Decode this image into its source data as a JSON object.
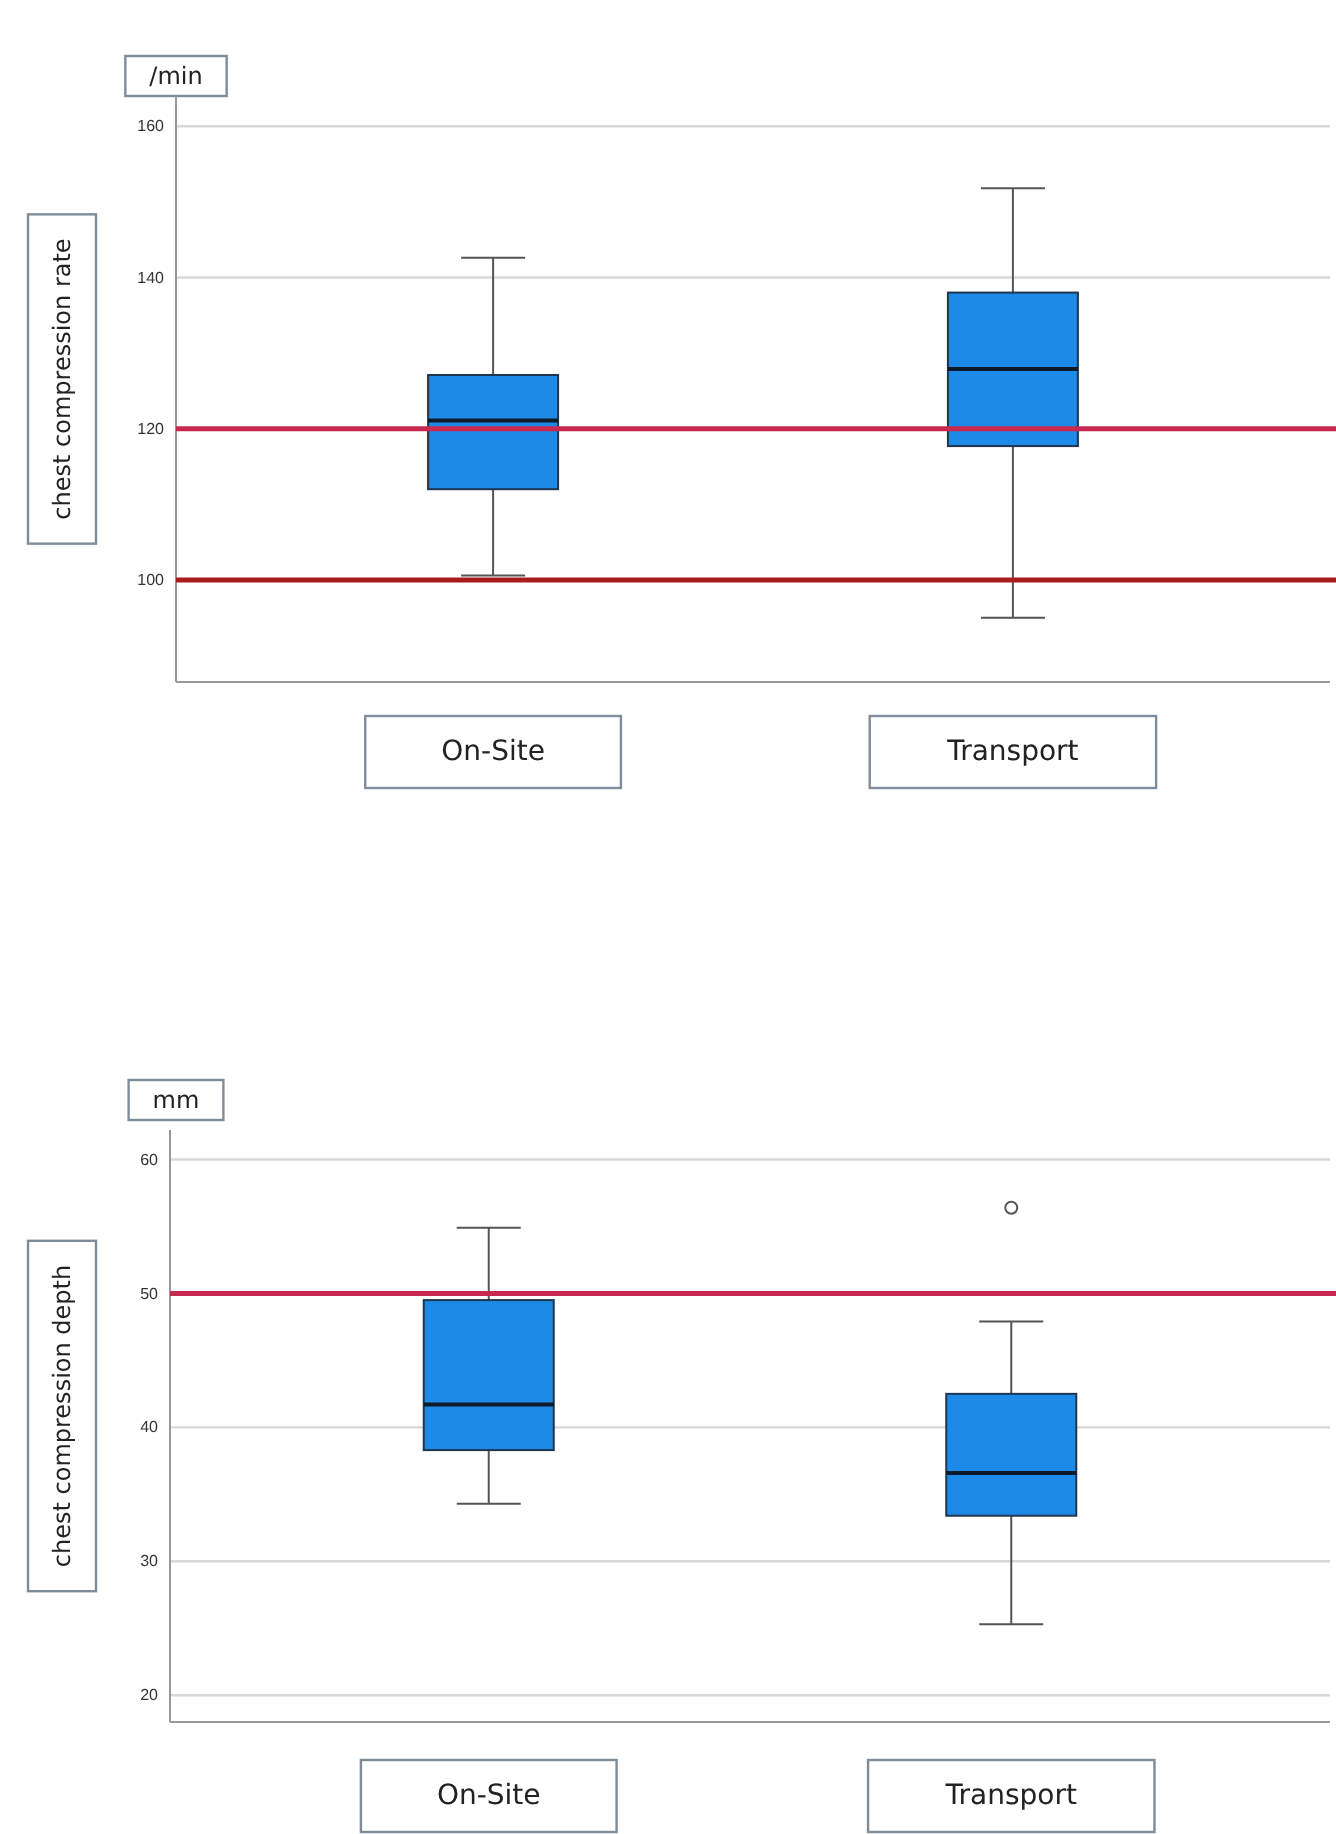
{
  "chart_data": [
    {
      "type": "box",
      "ylabel": "chest compression rate",
      "annotations": [
        "/min"
      ],
      "categories": [
        "On-Site",
        "Transport"
      ],
      "series": [
        {
          "color": "#1c8ae6",
          "boxes": [
            {
              "low": 100.6,
              "q1": 112,
              "median": 121.1,
              "q3": 127.1,
              "high": 142.6
            },
            {
              "low": 95,
              "q1": 117.7,
              "median": 127.9,
              "q3": 138,
              "high": 151.8
            }
          ]
        }
      ],
      "ylim": [
        86.5,
        164
      ],
      "yticks": [
        100,
        120,
        140,
        160
      ],
      "grid": "y",
      "ref_lines": [
        {
          "axis": "y",
          "value": 120,
          "color": "#c8284e"
        },
        {
          "axis": "y",
          "value": 100,
          "color": "#a81c1c"
        }
      ]
    },
    {
      "type": "box",
      "ylabel": "chest compression depth",
      "annotations": [
        "mm"
      ],
      "categories": [
        "On-Site",
        "Transport"
      ],
      "series": [
        {
          "color": "#1c8ae6",
          "boxes": [
            {
              "low": 34.3,
              "q1": 38.3,
              "median": 41.7,
              "q3": 49.5,
              "high": 54.9
            },
            {
              "low": 25.3,
              "q1": 33.4,
              "median": 36.6,
              "q3": 42.5,
              "high": 47.9,
              "outliers": [
                56.4
              ]
            }
          ]
        }
      ],
      "ylim": [
        18,
        62.2
      ],
      "yticks": [
        20,
        30,
        40,
        50,
        60
      ],
      "grid": "y",
      "ref_lines": [
        {
          "axis": "y",
          "value": 50,
          "color": "#c8284e"
        }
      ]
    }
  ]
}
